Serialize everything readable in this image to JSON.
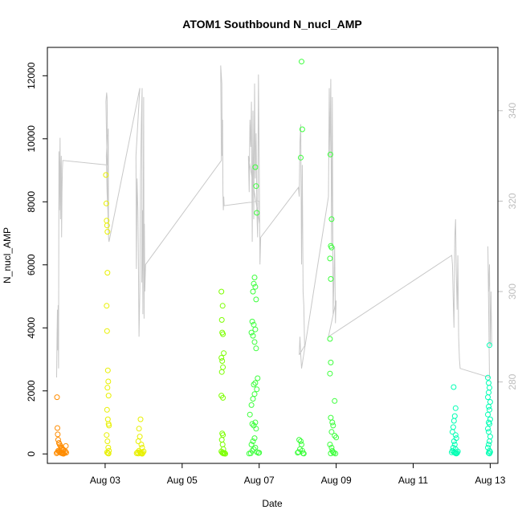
{
  "chart_data": {
    "type": "scatter",
    "title": "ATOM1 Southbound N_nucl_AMP",
    "xlabel": "Date",
    "ylabel": "N_nucl_AMP",
    "xlim_days": [
      1.5,
      13.2
    ],
    "ylim": [
      -300,
      12900
    ],
    "y2lim": [
      262,
      354
    ],
    "x_tick_labels": [
      "Aug 03",
      "Aug 05",
      "Aug 07",
      "Aug 09",
      "Aug 11",
      "Aug 13"
    ],
    "x_tick_days": [
      3,
      5,
      7,
      9,
      11,
      13
    ],
    "y_ticks": [
      0,
      2000,
      4000,
      6000,
      8000,
      10000,
      12000
    ],
    "y2_ticks": [
      280,
      300,
      320,
      340
    ],
    "colors": {
      "orange": "#ff8c00",
      "yellow": "#e8f000",
      "light_green": "#7cff00",
      "green": "#3cff3c",
      "cyan": "#00ffb4",
      "gray_line": "#c8c8c8"
    },
    "series": [
      {
        "color": "#ff8c00",
        "points": [
          [
            1.75,
            1800
          ],
          [
            1.76,
            820
          ],
          [
            1.77,
            620
          ],
          [
            1.78,
            450
          ],
          [
            1.8,
            350
          ],
          [
            1.82,
            300
          ],
          [
            1.84,
            250
          ],
          [
            1.86,
            200
          ],
          [
            1.88,
            180
          ],
          [
            1.9,
            150
          ],
          [
            1.92,
            120
          ],
          [
            1.78,
            100
          ],
          [
            1.8,
            80
          ],
          [
            1.82,
            60
          ],
          [
            1.84,
            40
          ],
          [
            1.86,
            30
          ],
          [
            1.88,
            20
          ],
          [
            1.9,
            10
          ],
          [
            1.92,
            5
          ],
          [
            1.76,
            50
          ],
          [
            1.74,
            20
          ],
          [
            1.95,
            30
          ],
          [
            1.97,
            80
          ],
          [
            1.98,
            250
          ],
          [
            1.99,
            40
          ]
        ]
      },
      {
        "color": "#e8f000",
        "points": [
          [
            3.02,
            8850
          ],
          [
            3.03,
            7950
          ],
          [
            3.04,
            7400
          ],
          [
            3.05,
            7250
          ],
          [
            3.06,
            7050
          ],
          [
            3.06,
            5750
          ],
          [
            3.04,
            4700
          ],
          [
            3.05,
            3900
          ],
          [
            3.07,
            2650
          ],
          [
            3.08,
            2300
          ],
          [
            3.06,
            2100
          ],
          [
            3.09,
            1850
          ],
          [
            3.05,
            1400
          ],
          [
            3.07,
            1100
          ],
          [
            3.09,
            950
          ],
          [
            3.1,
            900
          ],
          [
            3.04,
            600
          ],
          [
            3.06,
            400
          ],
          [
            3.08,
            200
          ],
          [
            3.1,
            100
          ],
          [
            3.05,
            50
          ],
          [
            3.07,
            20
          ],
          [
            3.09,
            10
          ],
          [
            3.92,
            1100
          ],
          [
            3.88,
            800
          ],
          [
            3.9,
            550
          ],
          [
            3.86,
            400
          ],
          [
            3.94,
            300
          ],
          [
            3.96,
            200
          ],
          [
            3.88,
            100
          ],
          [
            3.9,
            60
          ],
          [
            3.92,
            30
          ],
          [
            3.94,
            15
          ],
          [
            3.96,
            5
          ],
          [
            3.84,
            50
          ],
          [
            3.82,
            20
          ],
          [
            3.98,
            40
          ],
          [
            4.0,
            80
          ],
          [
            3.86,
            10
          ]
        ]
      },
      {
        "color": "#7cff00",
        "points": [
          [
            6.02,
            5150
          ],
          [
            6.05,
            4700
          ],
          [
            6.03,
            4250
          ],
          [
            6.04,
            3850
          ],
          [
            6.06,
            3800
          ],
          [
            6.08,
            3200
          ],
          [
            6.02,
            3050
          ],
          [
            6.04,
            2950
          ],
          [
            6.06,
            2750
          ],
          [
            6.03,
            2600
          ],
          [
            6.02,
            1850
          ],
          [
            6.06,
            1780
          ],
          [
            6.04,
            650
          ],
          [
            6.06,
            600
          ],
          [
            6.03,
            450
          ],
          [
            6.05,
            300
          ],
          [
            6.07,
            150
          ],
          [
            6.02,
            80
          ],
          [
            6.04,
            40
          ],
          [
            6.06,
            20
          ],
          [
            6.08,
            10
          ],
          [
            6.1,
            30
          ],
          [
            6.12,
            5
          ]
        ]
      },
      {
        "color": "#3cff3c",
        "points": [
          [
            6.88,
            5600
          ],
          [
            6.86,
            5400
          ],
          [
            6.9,
            5300
          ],
          [
            6.84,
            5150
          ],
          [
            6.92,
            4900
          ],
          [
            6.82,
            4200
          ],
          [
            6.86,
            4100
          ],
          [
            6.9,
            3950
          ],
          [
            6.8,
            3850
          ],
          [
            6.84,
            3750
          ],
          [
            6.88,
            3550
          ],
          [
            6.92,
            3350
          ],
          [
            6.96,
            2400
          ],
          [
            6.9,
            2250
          ],
          [
            6.86,
            2200
          ],
          [
            6.94,
            2050
          ],
          [
            6.88,
            1900
          ],
          [
            6.84,
            1750
          ],
          [
            6.8,
            1550
          ],
          [
            6.76,
            1250
          ],
          [
            6.9,
            1000
          ],
          [
            6.82,
            950
          ],
          [
            6.86,
            900
          ],
          [
            6.92,
            800
          ],
          [
            6.88,
            500
          ],
          [
            6.84,
            400
          ],
          [
            6.8,
            300
          ],
          [
            6.9,
            200
          ],
          [
            6.86,
            150
          ],
          [
            6.82,
            100
          ],
          [
            6.94,
            60
          ],
          [
            6.98,
            30
          ],
          [
            6.78,
            20
          ],
          [
            6.74,
            10
          ],
          [
            7.0,
            40
          ],
          [
            6.9,
            9100
          ],
          [
            6.92,
            8500
          ],
          [
            6.94,
            7650
          ],
          [
            8.1,
            12450
          ],
          [
            8.12,
            10300
          ],
          [
            8.08,
            9400
          ],
          [
            8.04,
            450
          ],
          [
            8.08,
            400
          ],
          [
            8.1,
            300
          ],
          [
            8.06,
            150
          ],
          [
            8.12,
            100
          ],
          [
            8.02,
            60
          ],
          [
            8.0,
            40
          ],
          [
            8.14,
            20
          ],
          [
            8.16,
            10
          ],
          [
            8.85,
            9500
          ],
          [
            8.88,
            7450
          ],
          [
            8.86,
            6600
          ],
          [
            8.88,
            6550
          ],
          [
            8.84,
            6200
          ],
          [
            8.86,
            5550
          ],
          [
            8.84,
            3650
          ],
          [
            8.86,
            2900
          ],
          [
            8.84,
            2550
          ],
          [
            8.96,
            1680
          ],
          [
            8.86,
            1150
          ],
          [
            8.9,
            1000
          ],
          [
            8.92,
            900
          ],
          [
            8.88,
            700
          ],
          [
            8.96,
            580
          ],
          [
            9.0,
            520
          ],
          [
            8.84,
            300
          ],
          [
            8.88,
            200
          ],
          [
            8.9,
            100
          ],
          [
            8.92,
            60
          ],
          [
            8.94,
            30
          ],
          [
            8.86,
            15
          ],
          [
            8.98,
            10
          ]
        ]
      },
      {
        "color": "#00ffb4",
        "points": [
          [
            12.05,
            2120
          ],
          [
            12.1,
            1450
          ],
          [
            12.08,
            1200
          ],
          [
            12.06,
            1050
          ],
          [
            12.04,
            850
          ],
          [
            12.02,
            700
          ],
          [
            12.1,
            600
          ],
          [
            12.12,
            500
          ],
          [
            12.06,
            400
          ],
          [
            12.08,
            300
          ],
          [
            12.04,
            200
          ],
          [
            12.1,
            150
          ],
          [
            12.02,
            100
          ],
          [
            12.06,
            60
          ],
          [
            12.08,
            40
          ],
          [
            12.1,
            20
          ],
          [
            12.12,
            10
          ],
          [
            12.14,
            30
          ],
          [
            12.16,
            80
          ],
          [
            12.0,
            50
          ],
          [
            12.98,
            3450
          ],
          [
            12.94,
            2420
          ],
          [
            12.96,
            2250
          ],
          [
            12.98,
            2100
          ],
          [
            12.96,
            1950
          ],
          [
            12.94,
            1800
          ],
          [
            13.0,
            1650
          ],
          [
            12.96,
            1500
          ],
          [
            12.98,
            1400
          ],
          [
            12.94,
            1250
          ],
          [
            13.0,
            1100
          ],
          [
            12.96,
            1000
          ],
          [
            12.98,
            950
          ],
          [
            12.94,
            800
          ],
          [
            12.96,
            700
          ],
          [
            13.0,
            550
          ],
          [
            12.98,
            400
          ],
          [
            12.96,
            300
          ],
          [
            12.94,
            200
          ],
          [
            12.98,
            100
          ],
          [
            13.0,
            60
          ],
          [
            12.96,
            30
          ],
          [
            12.98,
            10
          ]
        ]
      }
    ],
    "gray_line": {
      "axis": "right",
      "points": [
        [
          1.74,
          281
        ],
        [
          1.75,
          290
        ],
        [
          1.76,
          296
        ],
        [
          1.77,
          287
        ],
        [
          1.78,
          297
        ],
        [
          1.79,
          283
        ],
        [
          1.8,
          331
        ],
        [
          1.81,
          318
        ],
        [
          1.82,
          324
        ],
        [
          1.83,
          334
        ],
        [
          1.84,
          316
        ],
        [
          1.85,
          326
        ],
        [
          1.86,
          330
        ],
        [
          1.87,
          312
        ],
        [
          1.88,
          322
        ],
        [
          1.89,
          327
        ],
        [
          1.9,
          329
        ],
        [
          3.05,
          328
        ],
        [
          3.02,
          342
        ],
        [
          3.04,
          344
        ],
        [
          3.05,
          343
        ],
        [
          3.06,
          335
        ],
        [
          3.03,
          330
        ],
        [
          3.05,
          322
        ],
        [
          3.07,
          318
        ],
        [
          3.09,
          312
        ],
        [
          3.06,
          325
        ],
        [
          3.08,
          336
        ],
        [
          3.09,
          312
        ],
        [
          3.1,
          311
        ],
        [
          3.9,
          345
        ],
        [
          3.8,
          330
        ],
        [
          3.81,
          305
        ],
        [
          3.83,
          325
        ],
        [
          3.85,
          318
        ],
        [
          3.86,
          310
        ],
        [
          3.88,
          290
        ],
        [
          3.9,
          300
        ],
        [
          3.92,
          325
        ],
        [
          3.94,
          337
        ],
        [
          3.96,
          345
        ],
        [
          3.95,
          302
        ],
        [
          3.97,
          318
        ],
        [
          3.98,
          295
        ],
        [
          4.0,
          343
        ],
        [
          4.01,
          294
        ],
        [
          4.02,
          315
        ],
        [
          4.03,
          300
        ],
        [
          4.05,
          306
        ],
        [
          6.02,
          329
        ],
        [
          6.01,
          340
        ],
        [
          6.0,
          350
        ],
        [
          6.03,
          346
        ],
        [
          6.04,
          330
        ],
        [
          6.05,
          338
        ],
        [
          6.06,
          322
        ],
        [
          6.07,
          318
        ],
        [
          6.08,
          321
        ],
        [
          6.09,
          319
        ],
        [
          7.0,
          320
        ],
        [
          7.01,
          315
        ],
        [
          6.72,
          330
        ],
        [
          6.74,
          322
        ],
        [
          6.76,
          338
        ],
        [
          6.78,
          332
        ],
        [
          6.8,
          342
        ],
        [
          6.82,
          311
        ],
        [
          6.84,
          340
        ],
        [
          6.86,
          316
        ],
        [
          6.88,
          346
        ],
        [
          6.9,
          325
        ],
        [
          6.92,
          335
        ],
        [
          6.94,
          318
        ],
        [
          6.96,
          312
        ],
        [
          6.98,
          348
        ],
        [
          7.0,
          330
        ],
        [
          7.02,
          306
        ],
        [
          7.04,
          312
        ],
        [
          8.02,
          323
        ],
        [
          8.04,
          321
        ],
        [
          8.06,
          333
        ],
        [
          8.08,
          337
        ],
        [
          8.1,
          306
        ],
        [
          8.12,
          328
        ],
        [
          8.14,
          300
        ],
        [
          8.16,
          297
        ],
        [
          8.18,
          288
        ],
        [
          8.04,
          286
        ],
        [
          8.06,
          290
        ],
        [
          8.08,
          286
        ],
        [
          8.1,
          283
        ],
        [
          8.12,
          284
        ],
        [
          8.8,
          321
        ],
        [
          8.82,
          345
        ],
        [
          8.84,
          330
        ],
        [
          8.86,
          347
        ],
        [
          8.88,
          310
        ],
        [
          8.9,
          343
        ],
        [
          8.92,
          295
        ],
        [
          8.94,
          302
        ],
        [
          8.96,
          310
        ],
        [
          8.98,
          293
        ],
        [
          9.0,
          298
        ],
        [
          8.8,
          290
        ],
        [
          12.0,
          308
        ],
        [
          12.02,
          306
        ],
        [
          12.04,
          298
        ],
        [
          12.06,
          292
        ],
        [
          12.08,
          312
        ],
        [
          12.1,
          316
        ],
        [
          12.12,
          304
        ],
        [
          12.14,
          296
        ],
        [
          12.16,
          308
        ],
        [
          12.18,
          290
        ],
        [
          12.2,
          285
        ],
        [
          12.22,
          283
        ],
        [
          12.98,
          281
        ],
        [
          12.94,
          310
        ],
        [
          12.96,
          300
        ],
        [
          12.98,
          306
        ],
        [
          13.0,
          288
        ],
        [
          13.02,
          300
        ],
        [
          13.04,
          288
        ]
      ]
    }
  }
}
